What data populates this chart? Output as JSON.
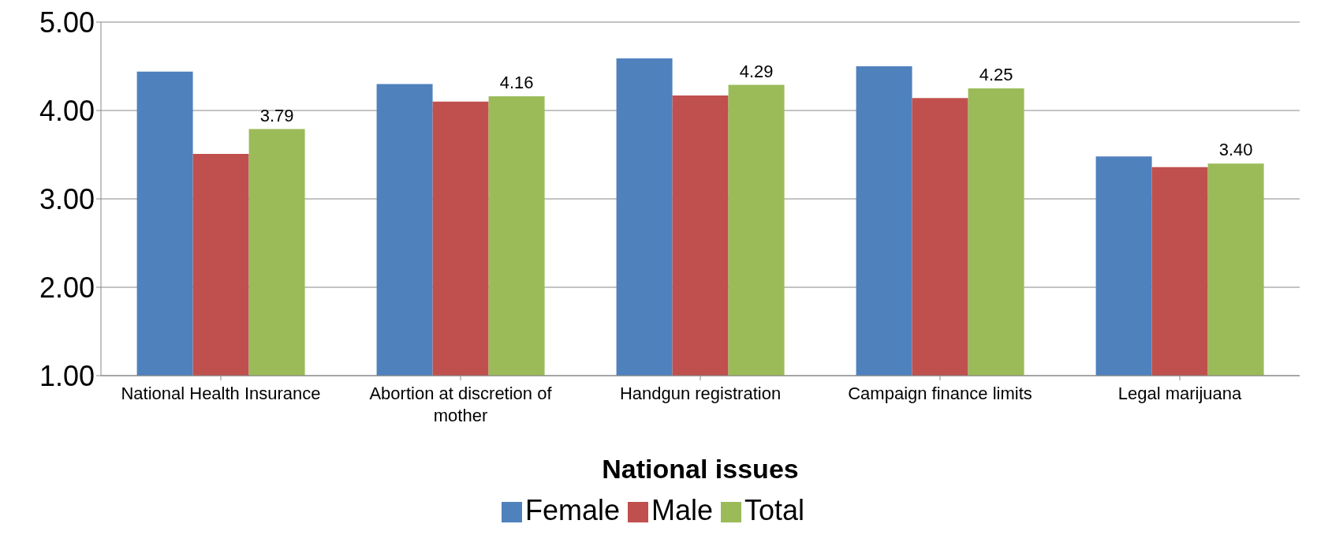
{
  "chart_data": {
    "type": "bar",
    "xlabel": "National issues",
    "categories": [
      "National Health Insurance",
      "Abortion at discretion of mother",
      "Handgun registration",
      "Campaign finance limits",
      "Legal marijuana"
    ],
    "series": [
      {
        "name": "Female",
        "color": "#4f81bd",
        "values": [
          4.44,
          4.3,
          4.59,
          4.5,
          3.48
        ]
      },
      {
        "name": "Male",
        "color": "#c0504d",
        "values": [
          3.51,
          4.1,
          4.17,
          4.14,
          3.36
        ]
      },
      {
        "name": "Total",
        "color": "#9bbb59",
        "values": [
          3.79,
          4.16,
          4.29,
          4.25,
          3.4
        ],
        "value_labels": [
          "3.79",
          "4.16",
          "4.29",
          "4.25",
          "3.40"
        ]
      }
    ],
    "ylim": [
      1,
      5
    ],
    "yticks": [
      {
        "value": 1,
        "label": "1.00"
      },
      {
        "value": 2,
        "label": "2.00"
      },
      {
        "value": 3,
        "label": "3.00"
      },
      {
        "value": 4,
        "label": "4.00"
      },
      {
        "value": 5,
        "label": "5.00"
      }
    ],
    "grid": "y",
    "legend": "bottom"
  }
}
